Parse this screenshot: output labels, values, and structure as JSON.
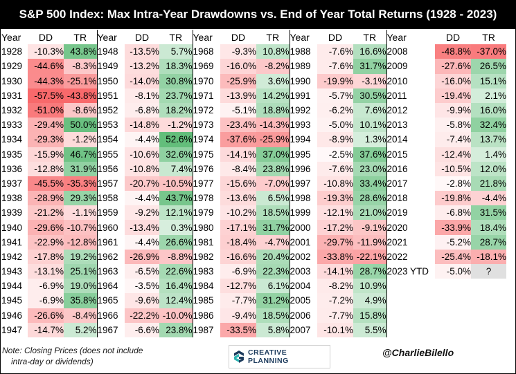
{
  "title": "S&P 500 Index: Max Intra-Year Drawdowns vs. End of Year Total Returns (1928 - 2023)",
  "headers": {
    "year": "Year",
    "dd": "DD",
    "tr": "TR"
  },
  "columns": [
    [
      [
        "1928",
        "-10.3%",
        "43.8%"
      ],
      [
        "1929",
        "-44.6%",
        "-8.3%"
      ],
      [
        "1930",
        "-44.3%",
        "-25.1%"
      ],
      [
        "1931",
        "-57.5%",
        "-43.8%"
      ],
      [
        "1932",
        "-51.0%",
        "-8.6%"
      ],
      [
        "1933",
        "-29.4%",
        "50.0%"
      ],
      [
        "1934",
        "-29.3%",
        "-1.2%"
      ],
      [
        "1935",
        "-15.9%",
        "46.7%"
      ],
      [
        "1936",
        "-12.8%",
        "31.9%"
      ],
      [
        "1937",
        "-45.5%",
        "-35.3%"
      ],
      [
        "1938",
        "-28.9%",
        "29.3%"
      ],
      [
        "1939",
        "-21.2%",
        "-1.1%"
      ],
      [
        "1940",
        "-29.6%",
        "-10.7%"
      ],
      [
        "1941",
        "-22.9%",
        "-12.8%"
      ],
      [
        "1942",
        "-17.8%",
        "19.2%"
      ],
      [
        "1943",
        "-13.1%",
        "25.1%"
      ],
      [
        "1944",
        "-6.9%",
        "19.0%"
      ],
      [
        "1945",
        "-6.9%",
        "35.8%"
      ],
      [
        "1946",
        "-26.6%",
        "-8.4%"
      ],
      [
        "1947",
        "-14.7%",
        "5.2%"
      ]
    ],
    [
      [
        "1948",
        "-13.5%",
        "5.7%"
      ],
      [
        "1949",
        "-13.2%",
        "18.3%"
      ],
      [
        "1950",
        "-14.0%",
        "30.8%"
      ],
      [
        "1951",
        "-8.1%",
        "23.7%"
      ],
      [
        "1952",
        "-6.8%",
        "18.2%"
      ],
      [
        "1953",
        "-14.8%",
        "-1.2%"
      ],
      [
        "1954",
        "-4.4%",
        "52.6%"
      ],
      [
        "1955",
        "-10.6%",
        "32.6%"
      ],
      [
        "1956",
        "-10.8%",
        "7.4%"
      ],
      [
        "1957",
        "-20.7%",
        "-10.5%"
      ],
      [
        "1958",
        "-4.4%",
        "43.7%"
      ],
      [
        "1959",
        "-9.2%",
        "12.1%"
      ],
      [
        "1960",
        "-13.4%",
        "0.3%"
      ],
      [
        "1961",
        "-4.4%",
        "26.6%"
      ],
      [
        "1962",
        "-26.9%",
        "-8.8%"
      ],
      [
        "1963",
        "-6.5%",
        "22.6%"
      ],
      [
        "1964",
        "-3.5%",
        "16.4%"
      ],
      [
        "1965",
        "-9.6%",
        "12.4%"
      ],
      [
        "1966",
        "-22.2%",
        "-10.0%"
      ],
      [
        "1967",
        "-6.6%",
        "23.8%"
      ]
    ],
    [
      [
        "1968",
        "-9.3%",
        "10.8%"
      ],
      [
        "1969",
        "-16.0%",
        "-8.2%"
      ],
      [
        "1970",
        "-25.9%",
        "3.6%"
      ],
      [
        "1971",
        "-13.9%",
        "14.2%"
      ],
      [
        "1972",
        "-5.1%",
        "18.8%"
      ],
      [
        "1973",
        "-23.4%",
        "-14.3%"
      ],
      [
        "1974",
        "-37.6%",
        "-25.9%"
      ],
      [
        "1975",
        "-14.1%",
        "37.0%"
      ],
      [
        "1976",
        "-8.4%",
        "23.8%"
      ],
      [
        "1977",
        "-15.6%",
        "-7.0%"
      ],
      [
        "1978",
        "-13.6%",
        "6.5%"
      ],
      [
        "1979",
        "-10.2%",
        "18.5%"
      ],
      [
        "1980",
        "-17.1%",
        "31.7%"
      ],
      [
        "1981",
        "-18.4%",
        "-4.7%"
      ],
      [
        "1982",
        "-16.6%",
        "20.4%"
      ],
      [
        "1983",
        "-6.9%",
        "22.3%"
      ],
      [
        "1984",
        "-12.7%",
        "6.1%"
      ],
      [
        "1985",
        "-7.7%",
        "31.2%"
      ],
      [
        "1986",
        "-9.4%",
        "18.5%"
      ],
      [
        "1987",
        "-33.5%",
        "5.8%"
      ]
    ],
    [
      [
        "1988",
        "-7.6%",
        "16.6%"
      ],
      [
        "1989",
        "-7.6%",
        "31.7%"
      ],
      [
        "1990",
        "-19.9%",
        "-3.1%"
      ],
      [
        "1991",
        "-5.7%",
        "30.5%"
      ],
      [
        "1992",
        "-6.2%",
        "7.6%"
      ],
      [
        "1993",
        "-5.0%",
        "10.1%"
      ],
      [
        "1994",
        "-8.9%",
        "1.3%"
      ],
      [
        "1995",
        "-2.5%",
        "37.6%"
      ],
      [
        "1996",
        "-7.6%",
        "23.0%"
      ],
      [
        "1997",
        "-10.8%",
        "33.4%"
      ],
      [
        "1998",
        "-19.3%",
        "28.6%"
      ],
      [
        "1999",
        "-12.1%",
        "21.0%"
      ],
      [
        "2000",
        "-17.2%",
        "-9.1%"
      ],
      [
        "2001",
        "-29.7%",
        "-11.9%"
      ],
      [
        "2002",
        "-33.8%",
        "-22.1%"
      ],
      [
        "2003",
        "-14.1%",
        "28.7%"
      ],
      [
        "2004",
        "-8.2%",
        "10.9%"
      ],
      [
        "2005",
        "-7.2%",
        "4.9%"
      ],
      [
        "2006",
        "-7.7%",
        "15.8%"
      ],
      [
        "2007",
        "-10.1%",
        "5.5%"
      ]
    ],
    [
      [
        "2008",
        "-48.8%",
        "-37.0%"
      ],
      [
        "2009",
        "-27.6%",
        "26.5%"
      ],
      [
        "2010",
        "-16.0%",
        "15.1%"
      ],
      [
        "2011",
        "-19.4%",
        "2.1%"
      ],
      [
        "2012",
        "-9.9%",
        "16.0%"
      ],
      [
        "2013",
        "-5.8%",
        "32.4%"
      ],
      [
        "2014",
        "-7.4%",
        "13.7%"
      ],
      [
        "2015",
        "-12.4%",
        "1.4%"
      ],
      [
        "2016",
        "-10.5%",
        "12.0%"
      ],
      [
        "2017",
        "-2.8%",
        "21.8%"
      ],
      [
        "2018",
        "-19.8%",
        "-4.4%"
      ],
      [
        "2019",
        "-6.8%",
        "31.5%"
      ],
      [
        "2020",
        "-33.9%",
        "18.4%"
      ],
      [
        "2021",
        "-5.2%",
        "28.7%"
      ],
      [
        "2022",
        "-25.4%",
        "-18.1%"
      ],
      [
        "2023 YTD",
        "-5.0%",
        "?"
      ]
    ]
  ],
  "footer": {
    "note_line1": "Note: Closing Prices (does not include",
    "note_line2": "intra-day or dividends)",
    "logo_text": "CREATIVE PLANNING",
    "handle": "@CharlieBilello"
  },
  "colors": {
    "header_bg": "#000000",
    "header_fg": "#ffffff",
    "positive": "#63be7b",
    "negative": "#f8696b",
    "neutral": "#ffffff",
    "unknown": "#e0e0e0",
    "logo_blue": "#1b3a5c",
    "logo_teal": "#2bb3b1"
  }
}
